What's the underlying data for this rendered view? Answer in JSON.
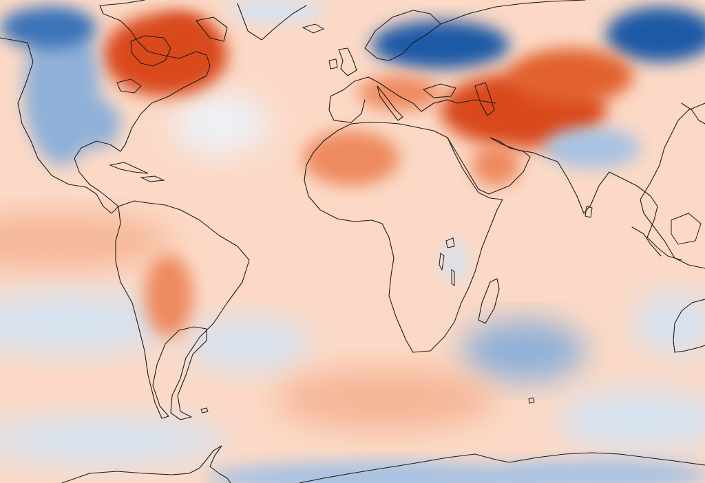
{
  "map": {
    "type": "global-temperature-anomaly",
    "colors": {
      "background": "#fbd9c6",
      "warm_strong": "#d9481a",
      "warm_medium": "#ee8a5e",
      "warm_light": "#f6b697",
      "neutral": "#f7f3f1",
      "cool_light": "#d5e2f0",
      "cool_medium": "#8fb0d8",
      "cool_strong": "#1f5aa6",
      "coastline": "#1a1a1a"
    },
    "anomaly_regions": [
      {
        "name": "eastern-canada",
        "kind": "warm_strong"
      },
      {
        "name": "middle-east-central-asia",
        "kind": "warm_strong"
      },
      {
        "name": "sahara",
        "kind": "warm_medium"
      },
      {
        "name": "south-america-interior",
        "kind": "warm_medium"
      },
      {
        "name": "western-north-america",
        "kind": "cool_medium"
      },
      {
        "name": "scandinavia-russia",
        "kind": "cool_strong"
      },
      {
        "name": "siberia-east",
        "kind": "cool_strong"
      },
      {
        "name": "tibet",
        "kind": "cool_medium"
      },
      {
        "name": "south-atlantic",
        "kind": "cool_light"
      },
      {
        "name": "south-indian-ocean",
        "kind": "cool_medium"
      },
      {
        "name": "south-pacific",
        "kind": "cool_light"
      },
      {
        "name": "antarctic-coast",
        "kind": "cool_medium"
      }
    ]
  }
}
